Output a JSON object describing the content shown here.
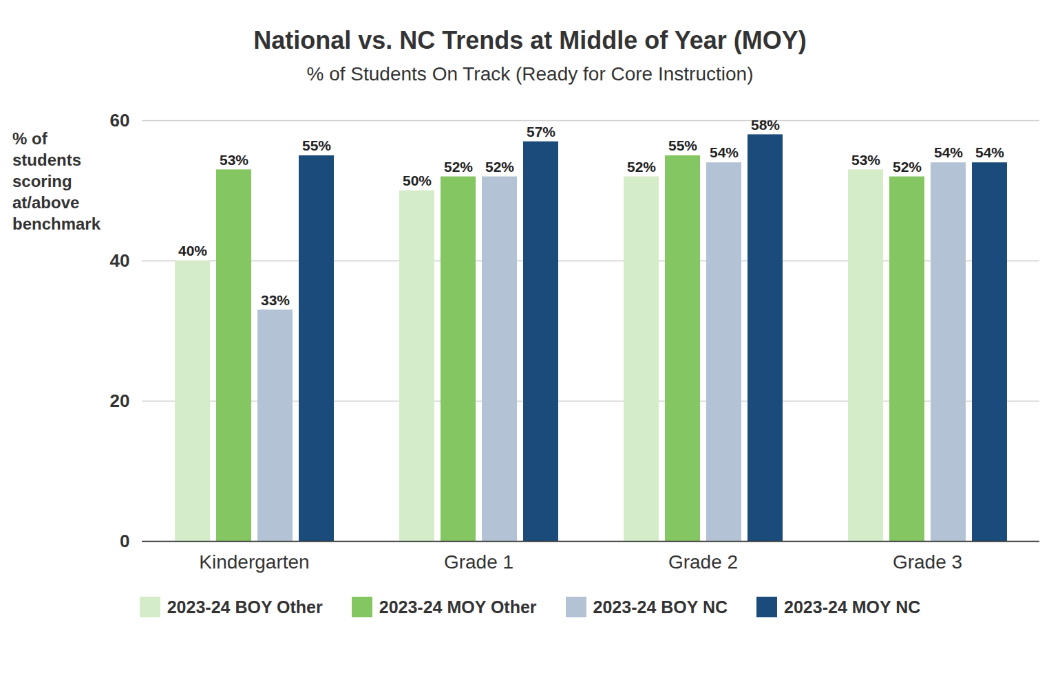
{
  "chart_data": {
    "type": "bar",
    "title": "National vs. NC Trends at Middle of Year (MOY)",
    "subtitle": "% of Students On Track (Ready for Core Instruction)",
    "y_label": "% of students scoring at/above benchmark",
    "categories": [
      "Kindergarten",
      "Grade 1",
      "Grade 2",
      "Grade 3"
    ],
    "series": [
      {
        "name": "2023-24 BOY Other",
        "color": "#d5ecc8",
        "values": [
          40,
          50,
          52,
          53
        ],
        "value_labels": [
          "40%",
          "50%",
          "52%",
          "53%"
        ]
      },
      {
        "name": "2023-24 MOY Other",
        "color": "#84c661",
        "values": [
          53,
          52,
          55,
          52
        ],
        "value_labels": [
          "53%",
          "52%",
          "55%",
          "52%"
        ]
      },
      {
        "name": "2023-24 BOY NC",
        "color": "#b3c3d5",
        "values": [
          33,
          52,
          54,
          54
        ],
        "value_labels": [
          "33%",
          "52%",
          "54%",
          "54%"
        ]
      },
      {
        "name": "2023-24 MOY NC",
        "color": "#1b4b7a",
        "values": [
          55,
          57,
          58,
          54
        ],
        "value_labels": [
          "55%",
          "57%",
          "58%",
          "54%"
        ]
      }
    ],
    "ylim": [
      0,
      60
    ],
    "yticks": [
      0,
      20,
      40,
      60
    ],
    "grid": true,
    "data_labels": true,
    "legend": "bottom"
  }
}
